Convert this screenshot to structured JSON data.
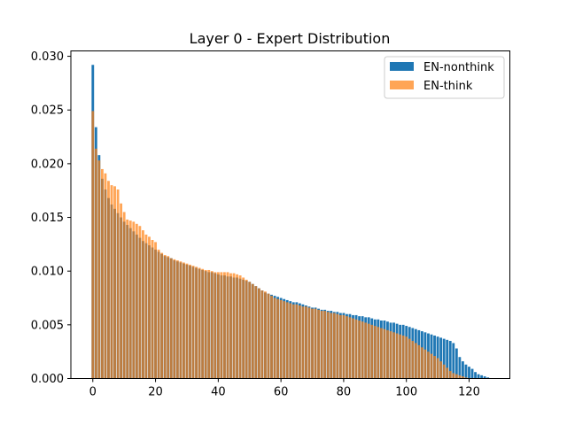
{
  "chart_data": {
    "type": "bar",
    "title": "Layer 0 - Expert Distribution",
    "xlabel": "",
    "ylabel": "",
    "xlim": [
      -7,
      133
    ],
    "ylim": [
      0,
      0.0305
    ],
    "x_ticks": [
      0,
      20,
      40,
      60,
      80,
      100,
      120
    ],
    "x_tick_labels": [
      "0",
      "20",
      "40",
      "60",
      "80",
      "100",
      "120"
    ],
    "y_ticks": [
      0.0,
      0.005,
      0.01,
      0.015,
      0.02,
      0.025,
      0.03
    ],
    "y_tick_labels": [
      "0.000",
      "0.005",
      "0.010",
      "0.015",
      "0.020",
      "0.025",
      "0.030"
    ],
    "legend_position": "top-right",
    "grid": false,
    "series": [
      {
        "name": "EN-nonthink",
        "color": "#1f77b4",
        "opacity": 1.0,
        "values": [
          0.0292,
          0.0234,
          0.0208,
          0.0186,
          0.0176,
          0.0168,
          0.0162,
          0.0158,
          0.0154,
          0.015,
          0.0146,
          0.0143,
          0.014,
          0.0137,
          0.0134,
          0.0131,
          0.0128,
          0.0126,
          0.0124,
          0.0122,
          0.012,
          0.0118,
          0.0116,
          0.0114,
          0.0113,
          0.0112,
          0.011,
          0.0109,
          0.0108,
          0.0107,
          0.0106,
          0.0105,
          0.0104,
          0.0103,
          0.0102,
          0.0101,
          0.01,
          0.0099,
          0.0099,
          0.0098,
          0.0097,
          0.0096,
          0.0096,
          0.0095,
          0.0095,
          0.0094,
          0.0094,
          0.0093,
          0.0092,
          0.0091,
          0.009,
          0.0088,
          0.0086,
          0.0084,
          0.0082,
          0.008,
          0.0079,
          0.0078,
          0.0077,
          0.0076,
          0.0075,
          0.0074,
          0.0073,
          0.0072,
          0.0071,
          0.0071,
          0.007,
          0.0069,
          0.0068,
          0.0067,
          0.0066,
          0.0066,
          0.0065,
          0.0064,
          0.0064,
          0.0063,
          0.0063,
          0.0062,
          0.0062,
          0.0061,
          0.0061,
          0.006,
          0.006,
          0.0059,
          0.0059,
          0.0058,
          0.0058,
          0.0057,
          0.0057,
          0.0056,
          0.0055,
          0.0055,
          0.0054,
          0.0054,
          0.0053,
          0.0052,
          0.0052,
          0.0051,
          0.005,
          0.005,
          0.0049,
          0.0048,
          0.0047,
          0.0046,
          0.0045,
          0.0044,
          0.0043,
          0.0042,
          0.0041,
          0.004,
          0.0039,
          0.0038,
          0.0037,
          0.0036,
          0.0035,
          0.0033,
          0.0028,
          0.002,
          0.0016,
          0.0013,
          0.0011,
          0.0009,
          0.0006,
          0.0004,
          0.0003,
          0.0002,
          0.0001
        ]
      },
      {
        "name": "EN-think",
        "color": "#ff7f0e",
        "opacity": 0.7,
        "values": [
          0.0249,
          0.0214,
          0.0203,
          0.0195,
          0.0191,
          0.0184,
          0.018,
          0.0179,
          0.0176,
          0.0163,
          0.0155,
          0.0148,
          0.0147,
          0.0146,
          0.0144,
          0.0142,
          0.0138,
          0.0134,
          0.0132,
          0.0129,
          0.0127,
          0.012,
          0.0117,
          0.0115,
          0.0114,
          0.0112,
          0.0111,
          0.011,
          0.0109,
          0.0108,
          0.0107,
          0.0106,
          0.0105,
          0.0104,
          0.0103,
          0.0102,
          0.0101,
          0.0101,
          0.01,
          0.0099,
          0.0099,
          0.0099,
          0.0099,
          0.0099,
          0.0098,
          0.0098,
          0.0097,
          0.0096,
          0.0094,
          0.0092,
          0.009,
          0.0088,
          0.0086,
          0.0084,
          0.0082,
          0.0081,
          0.0079,
          0.0077,
          0.0075,
          0.0074,
          0.0073,
          0.0072,
          0.0071,
          0.007,
          0.0069,
          0.0069,
          0.0068,
          0.0067,
          0.0067,
          0.0066,
          0.0065,
          0.0065,
          0.0064,
          0.0063,
          0.0063,
          0.0062,
          0.0061,
          0.0061,
          0.006,
          0.0059,
          0.0059,
          0.0058,
          0.0057,
          0.0056,
          0.0055,
          0.0054,
          0.0053,
          0.0052,
          0.0051,
          0.005,
          0.0049,
          0.0048,
          0.0047,
          0.0046,
          0.0045,
          0.0044,
          0.0043,
          0.0042,
          0.0041,
          0.004,
          0.0039,
          0.0037,
          0.0035,
          0.0033,
          0.0031,
          0.0029,
          0.0027,
          0.0025,
          0.0023,
          0.0021,
          0.0019,
          0.0016,
          0.0013,
          0.001,
          0.0007,
          0.0005,
          0.0004,
          0.0003,
          0.0002,
          0.0001,
          0.0,
          0.0,
          0.0,
          0.0,
          0.0,
          0.0,
          0.0,
          0.0
        ]
      }
    ]
  }
}
